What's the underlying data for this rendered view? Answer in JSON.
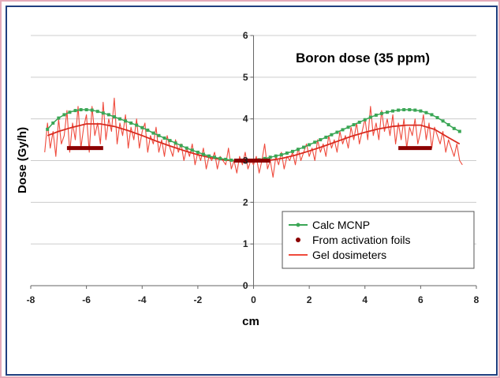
{
  "chart_data": {
    "type": "line",
    "title": "Boron dose (35 ppm)",
    "xlabel": "cm",
    "ylabel": "Dose (Gy/h)",
    "xlim": [
      -8,
      8
    ],
    "ylim": [
      0,
      6
    ],
    "xticks": [
      "-8",
      "-6",
      "-4",
      "-2",
      "0",
      "2",
      "4",
      "6",
      "8"
    ],
    "yticks": [
      "0",
      "1",
      "2",
      "3",
      "4",
      "5",
      "6"
    ],
    "grid": true,
    "legend_position": "bottom-right",
    "colors": {
      "mcnp": "#3aa655",
      "foils": "#8b0000",
      "gel": "#ef4a3c",
      "grid": "#cccccc"
    },
    "series": [
      {
        "name": "Calc MCNP",
        "style": "line-markers",
        "x": [
          -7.4,
          -7.2,
          -7.0,
          -6.8,
          -6.6,
          -6.4,
          -6.2,
          -6.0,
          -5.8,
          -5.6,
          -5.4,
          -5.2,
          -5.0,
          -4.8,
          -4.6,
          -4.4,
          -4.2,
          -4.0,
          -3.8,
          -3.6,
          -3.4,
          -3.2,
          -3.0,
          -2.8,
          -2.6,
          -2.4,
          -2.2,
          -2.0,
          -1.8,
          -1.6,
          -1.4,
          -1.2,
          -1.0,
          -0.8,
          -0.6,
          -0.4,
          -0.2,
          0.0,
          0.2,
          0.4,
          0.6,
          0.8,
          1.0,
          1.2,
          1.4,
          1.6,
          1.8,
          2.0,
          2.2,
          2.4,
          2.6,
          2.8,
          3.0,
          3.2,
          3.4,
          3.6,
          3.8,
          4.0,
          4.2,
          4.4,
          4.6,
          4.8,
          5.0,
          5.2,
          5.4,
          5.6,
          5.8,
          6.0,
          6.2,
          6.4,
          6.6,
          6.8,
          7.0,
          7.2,
          7.4
        ],
        "values": [
          3.75,
          3.9,
          4.02,
          4.1,
          4.16,
          4.2,
          4.22,
          4.22,
          4.21,
          4.18,
          4.14,
          4.1,
          4.05,
          4.0,
          3.95,
          3.9,
          3.85,
          3.79,
          3.73,
          3.66,
          3.6,
          3.54,
          3.48,
          3.42,
          3.36,
          3.3,
          3.25,
          3.2,
          3.15,
          3.11,
          3.08,
          3.05,
          3.03,
          3.01,
          3.0,
          3.0,
          3.0,
          3.0,
          3.02,
          3.05,
          3.08,
          3.11,
          3.14,
          3.18,
          3.22,
          3.27,
          3.32,
          3.38,
          3.44,
          3.5,
          3.56,
          3.62,
          3.68,
          3.74,
          3.8,
          3.86,
          3.92,
          3.98,
          4.04,
          4.09,
          4.13,
          4.16,
          4.19,
          4.21,
          4.22,
          4.22,
          4.21,
          4.19,
          4.15,
          4.1,
          4.03,
          3.95,
          3.86,
          3.77,
          3.7
        ]
      },
      {
        "name": "From activation foils",
        "style": "horizontal-bars",
        "segments": [
          {
            "x": [
              -6.7,
              -5.4
            ],
            "y": 3.3
          },
          {
            "x": [
              -0.7,
              0.6
            ],
            "y": 3.0
          },
          {
            "x": [
              5.2,
              6.4
            ],
            "y": 3.3
          }
        ]
      },
      {
        "name": "Gel dosimeters",
        "style": "noisy-line",
        "smooth_x": [
          -7.4,
          -7.0,
          -6.5,
          -6.0,
          -5.5,
          -5.0,
          -4.5,
          -4.0,
          -3.5,
          -3.0,
          -2.5,
          -2.0,
          -1.5,
          -1.0,
          -0.5,
          0.0,
          0.5,
          1.0,
          1.5,
          2.0,
          2.5,
          3.0,
          3.5,
          4.0,
          4.5,
          5.0,
          5.5,
          6.0,
          6.5,
          7.0,
          7.4
        ],
        "smooth_y": [
          3.6,
          3.7,
          3.8,
          3.88,
          3.88,
          3.82,
          3.72,
          3.6,
          3.47,
          3.35,
          3.24,
          3.14,
          3.06,
          3.01,
          2.99,
          2.98,
          3.0,
          3.05,
          3.13,
          3.23,
          3.34,
          3.46,
          3.58,
          3.68,
          3.76,
          3.82,
          3.85,
          3.85,
          3.75,
          3.55,
          3.4
        ],
        "noise_x": [
          -7.5,
          -7.4,
          -7.3,
          -7.2,
          -7.1,
          -7.0,
          -6.9,
          -6.8,
          -6.7,
          -6.6,
          -6.5,
          -6.4,
          -6.3,
          -6.2,
          -6.1,
          -6.0,
          -5.9,
          -5.8,
          -5.7,
          -5.6,
          -5.5,
          -5.4,
          -5.3,
          -5.2,
          -5.1,
          -5.0,
          -4.9,
          -4.8,
          -4.7,
          -4.6,
          -4.5,
          -4.4,
          -4.3,
          -4.2,
          -4.1,
          -4.0,
          -3.9,
          -3.8,
          -3.7,
          -3.6,
          -3.5,
          -3.4,
          -3.3,
          -3.2,
          -3.1,
          -3.0,
          -2.9,
          -2.8,
          -2.7,
          -2.6,
          -2.5,
          -2.4,
          -2.3,
          -2.2,
          -2.1,
          -2.0,
          -1.9,
          -1.8,
          -1.7,
          -1.6,
          -1.5,
          -1.4,
          -1.3,
          -1.2,
          -1.1,
          -1.0,
          -0.9,
          -0.8,
          -0.7,
          -0.6,
          -0.5,
          -0.4,
          -0.3,
          -0.2,
          -0.1,
          0.0,
          0.1,
          0.2,
          0.3,
          0.4,
          0.5,
          0.6,
          0.7,
          0.8,
          0.9,
          1.0,
          1.1,
          1.2,
          1.3,
          1.4,
          1.5,
          1.6,
          1.7,
          1.8,
          1.9,
          2.0,
          2.1,
          2.2,
          2.3,
          2.4,
          2.5,
          2.6,
          2.7,
          2.8,
          2.9,
          3.0,
          3.1,
          3.2,
          3.3,
          3.4,
          3.5,
          3.6,
          3.7,
          3.8,
          3.9,
          4.0,
          4.1,
          4.2,
          4.3,
          4.4,
          4.5,
          4.6,
          4.7,
          4.8,
          4.9,
          5.0,
          5.1,
          5.2,
          5.3,
          5.4,
          5.5,
          5.6,
          5.7,
          5.8,
          5.9,
          6.0,
          6.1,
          6.2,
          6.3,
          6.4,
          6.5,
          6.6,
          6.7,
          6.8,
          6.9,
          7.0,
          7.1,
          7.2,
          7.3,
          7.4,
          7.5
        ],
        "noise_y": [
          3.2,
          3.9,
          3.3,
          3.7,
          3.1,
          4.0,
          3.4,
          3.6,
          4.2,
          3.2,
          3.9,
          3.5,
          4.3,
          3.3,
          3.8,
          4.1,
          3.2,
          4.3,
          3.6,
          3.9,
          3.4,
          4.4,
          3.5,
          4.0,
          3.7,
          4.5,
          3.4,
          3.9,
          3.6,
          4.1,
          3.3,
          3.8,
          3.5,
          4.0,
          3.3,
          3.7,
          3.9,
          3.2,
          3.6,
          3.4,
          3.8,
          3.2,
          3.5,
          3.1,
          3.6,
          3.3,
          3.1,
          3.5,
          3.2,
          3.4,
          3.0,
          3.3,
          3.1,
          3.4,
          2.9,
          3.2,
          3.0,
          3.3,
          2.8,
          3.1,
          3.0,
          3.2,
          2.8,
          3.1,
          3.0,
          2.9,
          3.3,
          2.8,
          3.0,
          2.7,
          3.1,
          2.9,
          3.2,
          2.8,
          3.0,
          2.9,
          3.1,
          2.7,
          3.0,
          3.4,
          2.8,
          3.0,
          2.6,
          3.1,
          2.9,
          3.2,
          2.8,
          3.1,
          3.0,
          3.2,
          2.9,
          3.3,
          3.0,
          3.2,
          3.4,
          3.1,
          3.3,
          3.0,
          3.5,
          3.2,
          3.4,
          3.1,
          3.6,
          3.3,
          3.5,
          3.2,
          3.7,
          3.4,
          3.6,
          3.3,
          3.8,
          3.5,
          3.9,
          3.4,
          3.7,
          4.0,
          3.5,
          4.3,
          3.6,
          3.9,
          3.5,
          4.2,
          3.7,
          4.0,
          3.6,
          4.1,
          3.4,
          3.9,
          3.5,
          4.0,
          3.3,
          3.8,
          3.6,
          4.0,
          3.4,
          3.7,
          4.1,
          3.5,
          3.9,
          3.3,
          3.8,
          3.6,
          3.4,
          3.7,
          3.2,
          3.5,
          3.3,
          3.1,
          3.4,
          3.0,
          2.9
        ]
      }
    ]
  }
}
